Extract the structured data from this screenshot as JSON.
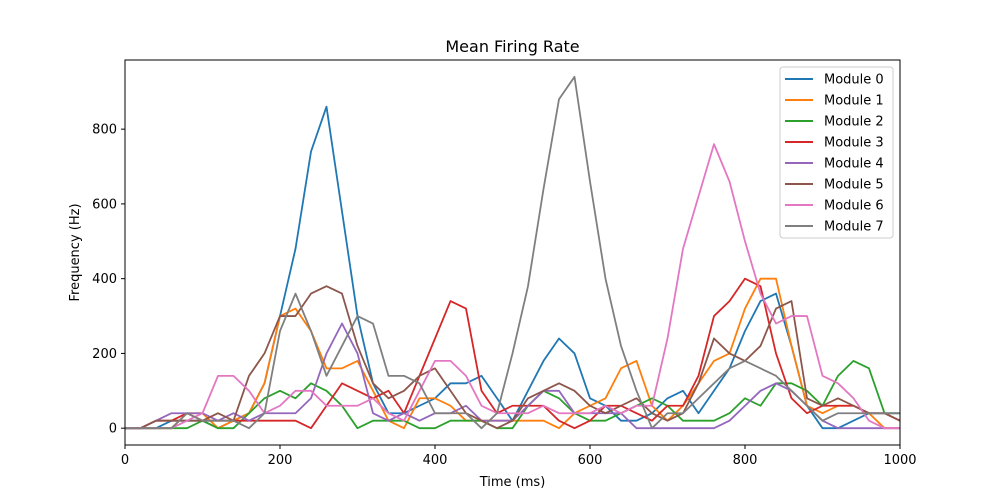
{
  "chart_data": {
    "type": "line",
    "title": "Mean Firing Rate",
    "xlabel": "Time (ms)",
    "ylabel": "Frequency (Hz)",
    "xlim": [
      0,
      1000
    ],
    "ylim": [
      -45,
      985
    ],
    "xticks": [
      0,
      200,
      400,
      600,
      800,
      1000
    ],
    "yticks": [
      0,
      200,
      400,
      600,
      800
    ],
    "grid": false,
    "legend_position": "top-right",
    "x": [
      0,
      20,
      40,
      60,
      80,
      100,
      120,
      140,
      160,
      180,
      200,
      220,
      240,
      260,
      280,
      300,
      320,
      340,
      360,
      380,
      400,
      420,
      440,
      460,
      480,
      500,
      520,
      540,
      560,
      580,
      600,
      620,
      640,
      660,
      680,
      700,
      720,
      740,
      760,
      780,
      800,
      820,
      840,
      860,
      880,
      900,
      920,
      940,
      960,
      980,
      1000
    ],
    "series": [
      {
        "name": "Module 0",
        "color": "#1f77b4",
        "values": [
          0,
          0,
          0,
          20,
          20,
          20,
          0,
          20,
          40,
          120,
          300,
          480,
          740,
          860,
          580,
          300,
          120,
          40,
          40,
          60,
          80,
          120,
          120,
          140,
          80,
          20,
          100,
          180,
          240,
          200,
          80,
          60,
          20,
          20,
          40,
          80,
          100,
          40,
          100,
          160,
          260,
          340,
          360,
          220,
          60,
          0,
          0,
          20,
          40,
          40,
          40
        ]
      },
      {
        "name": "Module 1",
        "color": "#ff7f0e",
        "values": [
          0,
          0,
          0,
          0,
          40,
          40,
          0,
          20,
          40,
          120,
          300,
          320,
          260,
          160,
          160,
          180,
          100,
          20,
          0,
          80,
          80,
          60,
          20,
          20,
          20,
          20,
          20,
          20,
          0,
          40,
          60,
          80,
          160,
          180,
          60,
          20,
          60,
          120,
          180,
          200,
          320,
          400,
          400,
          220,
          60,
          40,
          60,
          60,
          40,
          0,
          0
        ]
      },
      {
        "name": "Module 2",
        "color": "#2ca02c",
        "values": [
          0,
          0,
          0,
          0,
          0,
          20,
          0,
          0,
          40,
          80,
          100,
          80,
          120,
          100,
          60,
          0,
          20,
          20,
          20,
          0,
          0,
          20,
          20,
          20,
          0,
          0,
          60,
          100,
          80,
          40,
          20,
          20,
          40,
          60,
          80,
          60,
          20,
          20,
          20,
          40,
          80,
          60,
          120,
          120,
          100,
          60,
          140,
          180,
          160,
          40,
          40
        ]
      },
      {
        "name": "Module 3",
        "color": "#d62728",
        "values": [
          0,
          0,
          20,
          20,
          40,
          20,
          20,
          20,
          20,
          20,
          20,
          20,
          0,
          60,
          120,
          100,
          80,
          100,
          40,
          140,
          240,
          340,
          320,
          100,
          40,
          60,
          60,
          60,
          20,
          0,
          20,
          60,
          60,
          40,
          20,
          60,
          60,
          140,
          300,
          340,
          400,
          380,
          200,
          80,
          40,
          60,
          60,
          60,
          40,
          40,
          20
        ]
      },
      {
        "name": "Module 4",
        "color": "#9467bd",
        "values": [
          0,
          0,
          20,
          40,
          40,
          40,
          20,
          40,
          20,
          40,
          40,
          40,
          80,
          200,
          280,
          200,
          40,
          20,
          40,
          20,
          40,
          40,
          60,
          20,
          20,
          20,
          60,
          100,
          100,
          40,
          40,
          40,
          40,
          0,
          0,
          0,
          0,
          0,
          0,
          20,
          60,
          100,
          120,
          100,
          60,
          20,
          0,
          0,
          0,
          0,
          0
        ]
      },
      {
        "name": "Module 5",
        "color": "#8c564b",
        "values": [
          0,
          0,
          20,
          20,
          20,
          20,
          40,
          20,
          140,
          200,
          300,
          300,
          360,
          380,
          360,
          220,
          120,
          80,
          100,
          140,
          160,
          100,
          40,
          20,
          0,
          20,
          80,
          100,
          120,
          100,
          60,
          40,
          60,
          80,
          40,
          20,
          40,
          120,
          240,
          200,
          180,
          220,
          320,
          340,
          80,
          60,
          80,
          60,
          40,
          40,
          20
        ]
      },
      {
        "name": "Module 6",
        "color": "#e377c2",
        "values": [
          0,
          0,
          0,
          0,
          20,
          40,
          140,
          140,
          100,
          40,
          60,
          100,
          100,
          60,
          60,
          60,
          80,
          40,
          20,
          100,
          180,
          180,
          140,
          60,
          40,
          40,
          40,
          60,
          40,
          40,
          40,
          60,
          40,
          60,
          60,
          240,
          480,
          620,
          760,
          660,
          500,
          360,
          280,
          300,
          300,
          140,
          120,
          80,
          20,
          0,
          0
        ]
      },
      {
        "name": "Module 7",
        "color": "#7f7f7f",
        "values": [
          0,
          0,
          0,
          0,
          40,
          20,
          20,
          20,
          0,
          40,
          260,
          360,
          260,
          140,
          220,
          300,
          280,
          140,
          140,
          120,
          40,
          40,
          40,
          0,
          40,
          200,
          380,
          640,
          880,
          940,
          660,
          400,
          220,
          100,
          0,
          40,
          40,
          80,
          120,
          160,
          180,
          160,
          140,
          100,
          60,
          20,
          40,
          40,
          40,
          40,
          40
        ]
      }
    ]
  }
}
